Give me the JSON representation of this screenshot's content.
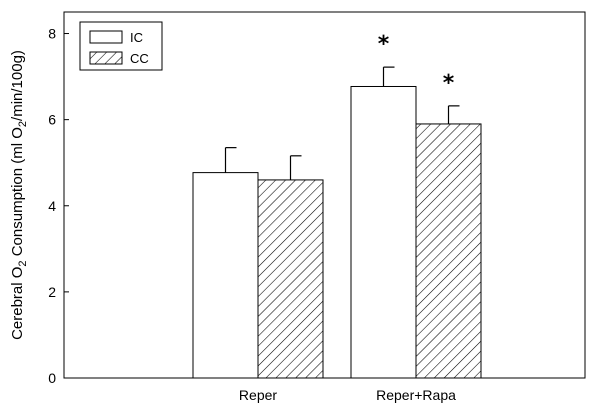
{
  "chart_data": {
    "type": "bar",
    "categories": [
      "Reper",
      "Reper+Rapa"
    ],
    "series": [
      {
        "name": "IC",
        "values": [
          4.77,
          6.77
        ],
        "errors": [
          0.58,
          0.45
        ],
        "fill": "#ffffff",
        "pattern": "none"
      },
      {
        "name": "CC",
        "values": [
          4.6,
          5.9
        ],
        "errors": [
          0.56,
          0.42
        ],
        "fill": "#ffffff",
        "pattern": "diagonal-hatch"
      }
    ],
    "significance": [
      {
        "series": 0,
        "category": 1,
        "label": "*"
      },
      {
        "series": 1,
        "category": 1,
        "label": "*"
      }
    ],
    "ylabel_parts": [
      "Cerebral O",
      "2",
      " Consumption (ml O",
      "2",
      "/min/100g)"
    ],
    "xlabel": "",
    "title": "",
    "ylim": [
      0,
      8.5
    ],
    "yticks": [
      0,
      2,
      4,
      6,
      8
    ],
    "legend_position": "top-left",
    "grid": false,
    "colors": {
      "stroke": "#000000",
      "background": "#ffffff"
    }
  }
}
